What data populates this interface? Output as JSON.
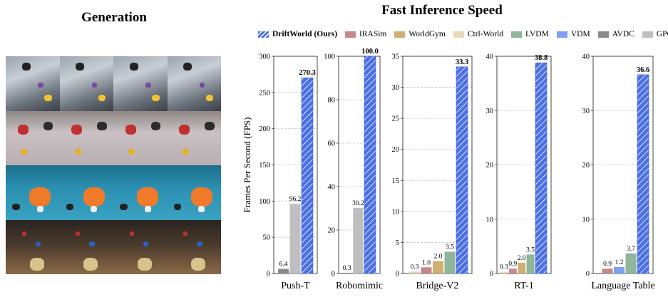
{
  "panel_titles": {
    "left": "Generation",
    "right": "Fast Inference Speed"
  },
  "colors": {
    "DriftWorld (Ours)": "#4a6fe8",
    "IRASim": "#c28a8d",
    "WorldGym": "#cfb072",
    "Ctrl-World": "#e9d9b8",
    "LVDM": "#8fb59a",
    "VDM": "#7fa0ee",
    "AVDC": "#8a8a8a",
    "GPC": "#bfbfbf"
  },
  "chart_data": {
    "type": "bar",
    "title": "Fast Inference Speed",
    "ylabel": "Frames Per Second (FPS)",
    "legend": {
      "placement": "top",
      "entries": [
        "DriftWorld (Ours)",
        "IRASim",
        "WorldGym",
        "Ctrl-World",
        "LVDM",
        "VDM",
        "AVDC",
        "GPC"
      ]
    },
    "grid": true,
    "panels": [
      {
        "xlabel": "Push-T",
        "ylim": [
          0,
          300
        ],
        "yticks": [
          0,
          50,
          100,
          150,
          200,
          250,
          300
        ],
        "bars": [
          {
            "series": "AVDC",
            "value": 6.4,
            "label": "6.4"
          },
          {
            "series": "GPC",
            "value": 96.2,
            "label": "96.2"
          },
          {
            "series": "DriftWorld (Ours)",
            "value": 270.3,
            "label": "270.3"
          }
        ]
      },
      {
        "xlabel": "Robomimic",
        "ylim": [
          0,
          100
        ],
        "yticks": [
          0,
          20,
          40,
          60,
          80,
          100
        ],
        "bars": [
          {
            "series": "AVDC",
            "value": 0.3,
            "label": "0.3"
          },
          {
            "series": "GPC",
            "value": 30.2,
            "label": "30.2"
          },
          {
            "series": "DriftWorld (Ours)",
            "value": 100.0,
            "label": "100.0"
          }
        ]
      },
      {
        "xlabel": "Bridge-V2",
        "ylim": [
          0,
          35
        ],
        "yticks": [
          0,
          5,
          10,
          15,
          20,
          25,
          30,
          35
        ],
        "bars": [
          {
            "series": "Ctrl-World",
            "value": 0.3,
            "label": "0.3"
          },
          {
            "series": "IRASim",
            "value": 1.0,
            "label": "1.0"
          },
          {
            "series": "WorldGym",
            "value": 2.0,
            "label": "2.0"
          },
          {
            "series": "LVDM",
            "value": 3.5,
            "label": "3.5"
          },
          {
            "series": "DriftWorld (Ours)",
            "value": 33.3,
            "label": "33.3"
          }
        ]
      },
      {
        "xlabel": "RT-1",
        "ylim": [
          0,
          40
        ],
        "yticks": [
          0,
          10,
          20,
          30,
          40
        ],
        "bars": [
          {
            "series": "Ctrl-World",
            "value": 0.3,
            "label": "0.3"
          },
          {
            "series": "IRASim",
            "value": 0.9,
            "label": "0.9"
          },
          {
            "series": "WorldGym",
            "value": 2.0,
            "label": "2.0"
          },
          {
            "series": "LVDM",
            "value": 3.5,
            "label": "3.5"
          },
          {
            "series": "DriftWorld (Ours)",
            "value": 38.8,
            "label": "38.8"
          }
        ]
      },
      {
        "xlabel": "Language Table",
        "ylim": [
          0,
          40
        ],
        "yticks": [
          0,
          10,
          20,
          30,
          40
        ],
        "bars": [
          {
            "series": "IRASim",
            "value": 0.9,
            "label": "0.9"
          },
          {
            "series": "VDM",
            "value": 1.2,
            "label": "1.2"
          },
          {
            "series": "LVDM",
            "value": 3.7,
            "label": "3.7"
          },
          {
            "series": "DriftWorld (Ours)",
            "value": 36.6,
            "label": "36.6"
          }
        ]
      }
    ]
  }
}
